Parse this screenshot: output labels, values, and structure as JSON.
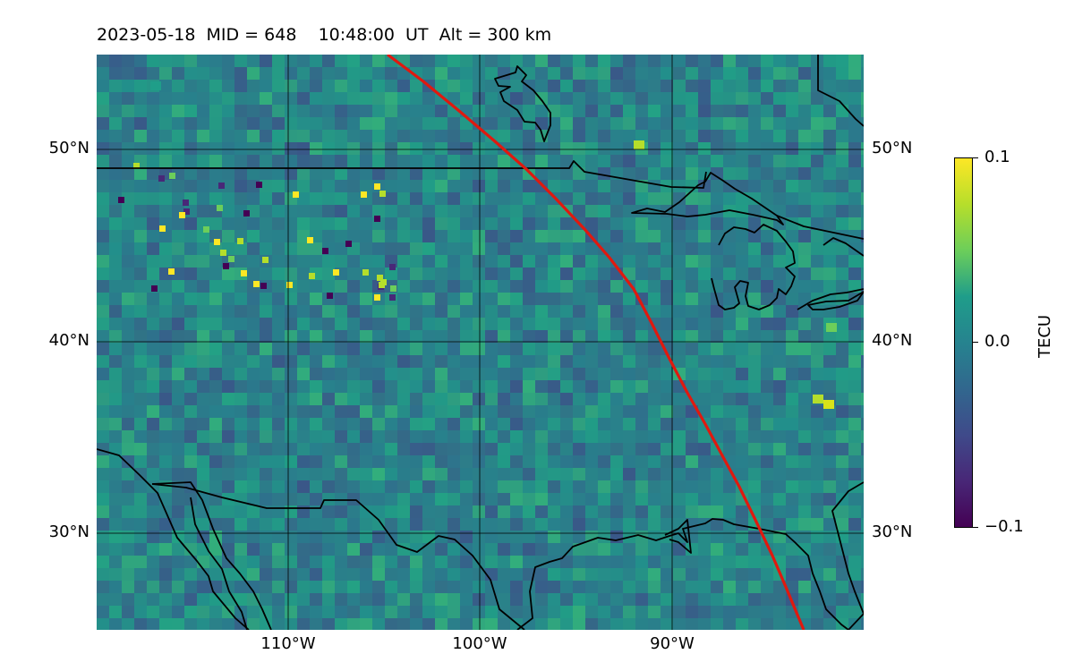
{
  "title": {
    "date": "2023-05-18",
    "mid": "MID = 648",
    "time": "10:48:00  UT",
    "alt": "Alt = 300 km"
  },
  "axes": {
    "lat_ticks": [
      "50°N",
      "40°N",
      "30°N"
    ],
    "lon_ticks": [
      "110°W",
      "100°W",
      "90°W"
    ]
  },
  "colorbar": {
    "label": "TECU",
    "ticks": [
      "0.1",
      "0.0",
      "−0.1"
    ],
    "colormap": "viridis",
    "min": -0.1,
    "max": 0.1
  },
  "map": {
    "extent_lon": [
      -120,
      -80
    ],
    "extent_lat": [
      25,
      55
    ],
    "gridlines": true,
    "colors": {
      "background": "#2a8a86",
      "terminator": "#e0190f",
      "coastline": "#000000"
    }
  }
}
